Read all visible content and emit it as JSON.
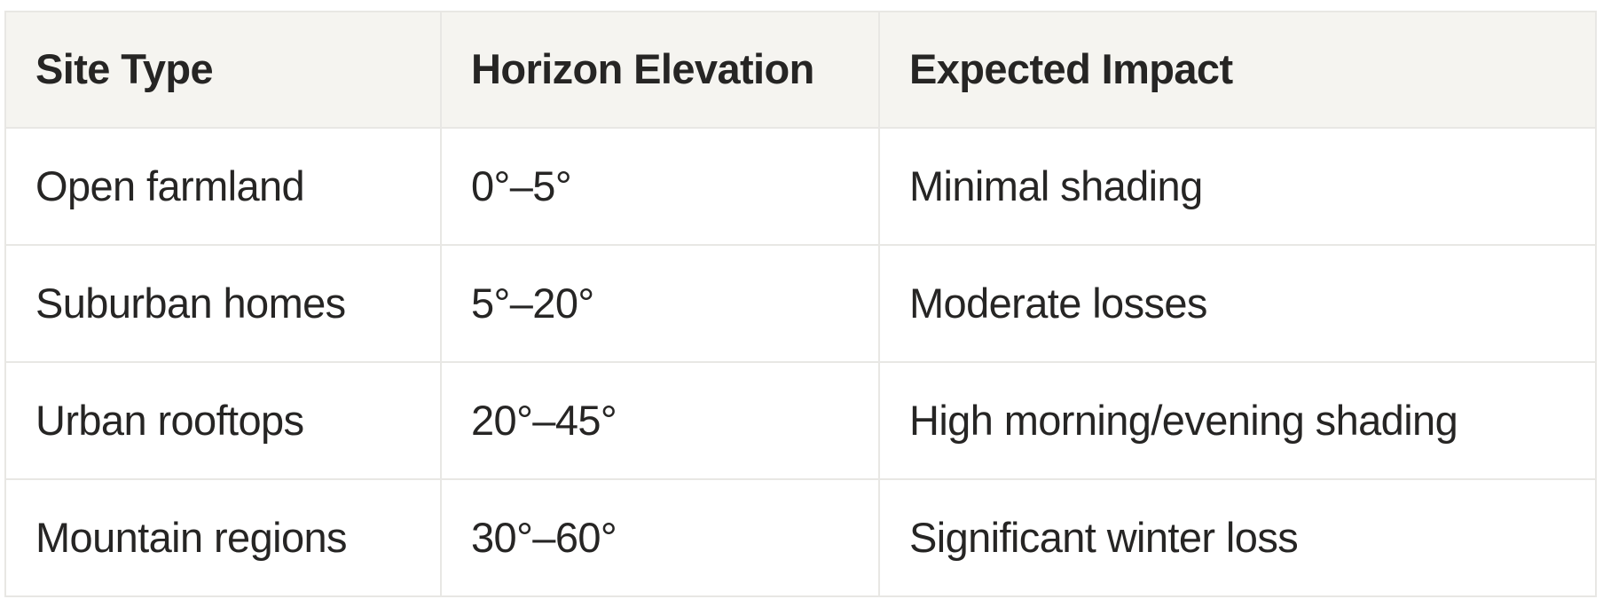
{
  "table": {
    "columns": [
      {
        "key": "site",
        "label": "Site Type"
      },
      {
        "key": "elevation",
        "label": "Horizon Elevation"
      },
      {
        "key": "impact",
        "label": "Expected Impact"
      }
    ],
    "rows": [
      {
        "site": "Open farmland",
        "elevation": "0°–5°",
        "impact": "Minimal shading"
      },
      {
        "site": "Suburban homes",
        "elevation": "5°–20°",
        "impact": "Moderate losses"
      },
      {
        "site": "Urban rooftops",
        "elevation": "20°–45°",
        "impact": "High morning/evening shading"
      },
      {
        "site": "Mountain regions",
        "elevation": "30°–60°",
        "impact": "Significant winter loss"
      }
    ],
    "colors": {
      "header_bg": "#f5f4f0",
      "border": "#e8e7e4",
      "text": "#262524",
      "cell_bg": "#ffffff",
      "page_bg": "#ffffff"
    }
  }
}
